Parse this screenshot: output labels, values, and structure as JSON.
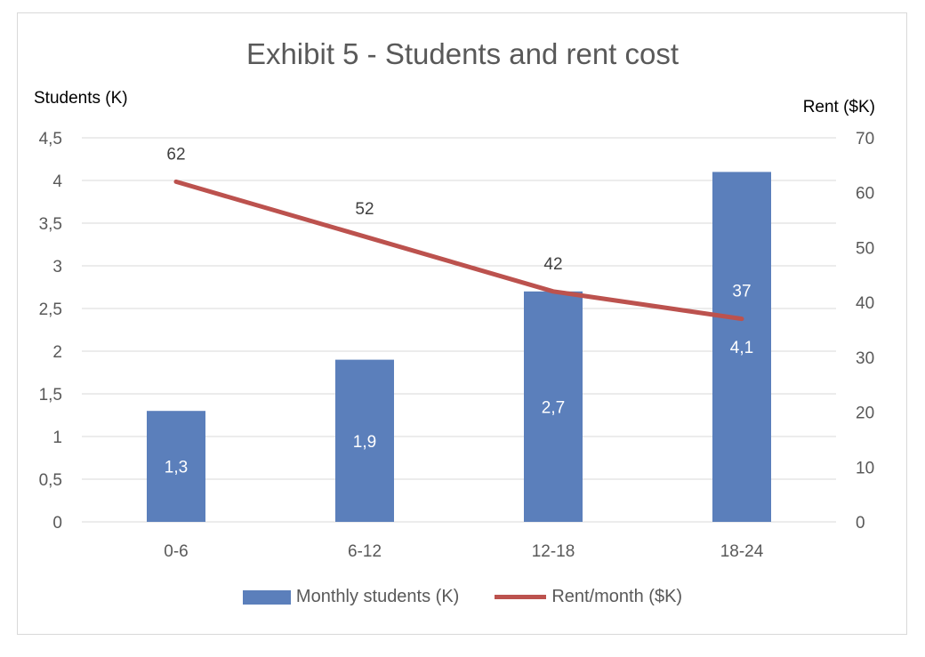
{
  "chart_data": {
    "type": "bar",
    "title": "Exhibit 5 - Students and rent cost",
    "categories": [
      "0-6",
      "6-12",
      "12-18",
      "18-24"
    ],
    "series": [
      {
        "name": "Monthly students (K)",
        "type": "bar",
        "axis": "left",
        "values": [
          1.3,
          1.9,
          2.7,
          4.1
        ],
        "labels": [
          "1,3",
          "1,9",
          "2,7",
          "4,1"
        ],
        "color": "#5b7fbb"
      },
      {
        "name": "Rent/month ($K)",
        "type": "line",
        "axis": "right",
        "values": [
          62,
          52,
          42,
          37
        ],
        "labels": [
          "62",
          "52",
          "42",
          "37"
        ],
        "color": "#bc524e"
      }
    ],
    "y_left": {
      "label": "Students (K)",
      "ylim": [
        0,
        4.5
      ],
      "ticks": [
        0,
        0.5,
        1,
        1.5,
        2,
        2.5,
        3,
        3.5,
        4,
        4.5
      ],
      "tick_labels": [
        "0",
        "0,5",
        "1",
        "1,5",
        "2",
        "2,5",
        "3",
        "3,5",
        "4",
        "4,5"
      ]
    },
    "y_right": {
      "label": "Rent ($K)",
      "ylim": [
        0,
        70
      ],
      "ticks": [
        0,
        10,
        20,
        30,
        40,
        50,
        60,
        70
      ],
      "tick_labels": [
        "0",
        "10",
        "20",
        "30",
        "40",
        "50",
        "60",
        "70"
      ]
    },
    "grid": true,
    "legend": "bottom"
  }
}
